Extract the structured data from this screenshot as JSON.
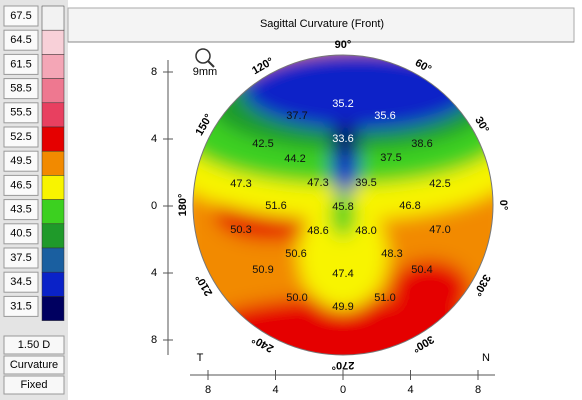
{
  "legend": {
    "items": [
      {
        "label": "67.5",
        "color": "#f2f2f2"
      },
      {
        "label": "64.5",
        "color": "#f8d0d8"
      },
      {
        "label": "61.5",
        "color": "#f4a6b6"
      },
      {
        "label": "58.5",
        "color": "#ee7890"
      },
      {
        "label": "55.5",
        "color": "#e84060"
      },
      {
        "label": "52.5",
        "color": "#e50000"
      },
      {
        "label": "49.5",
        "color": "#f28a00"
      },
      {
        "label": "46.5",
        "color": "#f8f400"
      },
      {
        "label": "43.5",
        "color": "#3cd020"
      },
      {
        "label": "40.5",
        "color": "#1f9a2a"
      },
      {
        "label": "37.5",
        "color": "#1a5fa0"
      },
      {
        "label": "34.5",
        "color": "#0a22c8"
      },
      {
        "label": "31.5",
        "color": "#000060"
      }
    ],
    "step": "1.50 D",
    "mode": "Curvature",
    "scale": "Fixed"
  },
  "map": {
    "title": "Sagittal Curvature (Front)",
    "zoom": "9mm",
    "angles": [
      "90°",
      "60°",
      "30°",
      "0°",
      "330°",
      "300°",
      "270°",
      "240°",
      "210°",
      "180°",
      "150°",
      "120°"
    ],
    "y_ticks": [
      "8",
      "4",
      "0",
      "4",
      "8"
    ],
    "x_ticks": [
      "8",
      "4",
      "0",
      "4",
      "8"
    ],
    "temporal": "T",
    "nasal": "N",
    "readings": [
      "35.2",
      "35.6",
      "37.7",
      "33.6",
      "42.5",
      "37.5",
      "38.6",
      "44.2",
      "47.3",
      "47.3",
      "39.5",
      "42.5",
      "51.6",
      "45.8",
      "46.8",
      "50.3",
      "48.6",
      "48.0",
      "47.0",
      "48.3",
      "50.6",
      "50.9",
      "47.4",
      "50.4",
      "50.0",
      "51.0",
      "49.9"
    ]
  }
}
